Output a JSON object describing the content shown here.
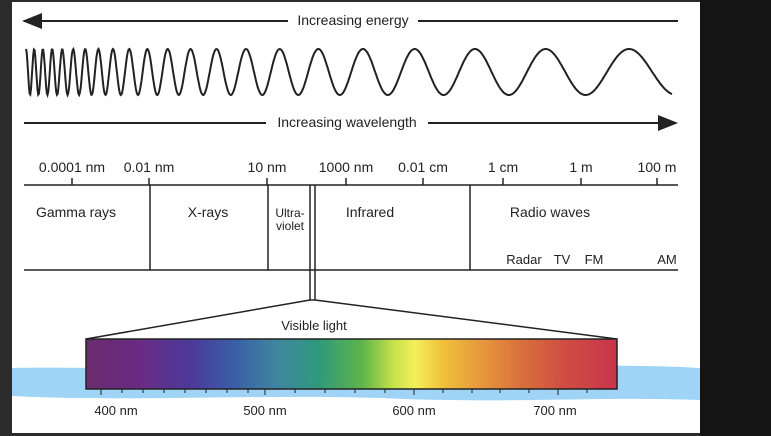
{
  "arrows": {
    "energy_label": "Increasing energy",
    "wavelength_label": "Increasing wavelength"
  },
  "scale": {
    "ticks": [
      "0.0001 nm",
      "0.01 nm",
      "10 nm",
      "1000 nm",
      "0.01 cm",
      "1 cm",
      "1 m",
      "100 m"
    ]
  },
  "regions": {
    "gamma": "Gamma rays",
    "xrays": "X-rays",
    "uv_line1": "Ultra-",
    "uv_line2": "violet",
    "infrared": "Infrared",
    "radio": "Radio waves"
  },
  "radio_bands": [
    "Radar",
    "TV",
    "FM",
    "AM"
  ],
  "visible": {
    "label": "Visible light",
    "ticks": [
      "400 nm",
      "500 nm",
      "600 nm",
      "700 nm"
    ]
  },
  "colors": {
    "page_bg": "#2b2b2b",
    "panel_bg": "#ffffff",
    "highlight": "#9fd4f6",
    "line": "#222222"
  }
}
